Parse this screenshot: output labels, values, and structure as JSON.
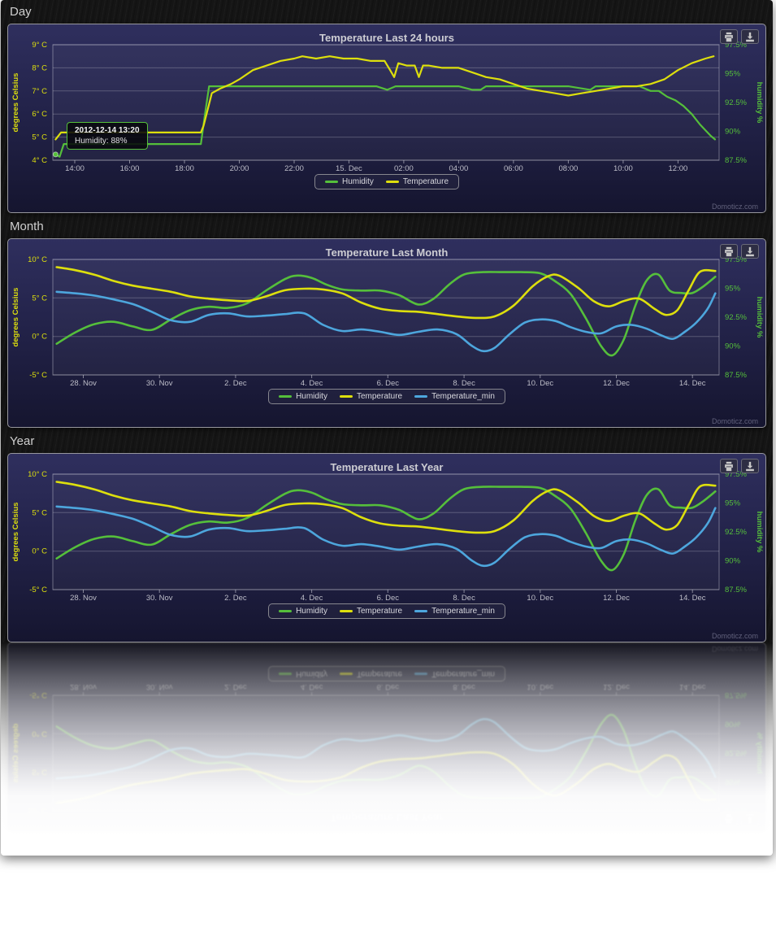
{
  "sections": [
    {
      "label": "Day"
    },
    {
      "label": "Month"
    },
    {
      "label": "Year"
    }
  ],
  "watermark": "Domoticz.com",
  "tooltip": {
    "title": "2012-12-14 13:20",
    "body": "Humidity: 88%"
  },
  "icons": {
    "print": "print-icon",
    "download": "download-icon"
  },
  "colors": {
    "humidity": "#55BF3B",
    "temperature": "#DDDF0D",
    "temperature_min": "#4DA6DD",
    "panel_bg_top": "#2f2f5e",
    "panel_bg_bottom": "#15152f"
  },
  "chart_data": [
    {
      "type": "line",
      "title": "Temperature Last 24 hours",
      "smooth": false,
      "ylabel_left": "degrees Celsius",
      "ylabel_right": "humidity %",
      "axis_colors": {
        "left": "#DDDF0D",
        "right": "#55BF3B"
      },
      "xlim": [
        13.2,
        37.5
      ],
      "ylim_left": [
        4,
        9
      ],
      "ylim_right": [
        87.5,
        97.5
      ],
      "xticks": {
        "values": [
          14,
          16,
          18,
          20,
          22,
          24,
          26,
          28,
          30,
          32,
          34,
          36
        ],
        "labels": [
          "14:00",
          "16:00",
          "18:00",
          "20:00",
          "22:00",
          "15. Dec",
          "02:00",
          "04:00",
          "06:00",
          "08:00",
          "10:00",
          "12:00"
        ]
      },
      "yticks_left": {
        "values": [
          4,
          5,
          6,
          7,
          8,
          9
        ],
        "labels": [
          "4° C",
          "5° C",
          "6° C",
          "7° C",
          "8° C",
          "9° C"
        ]
      },
      "yticks_right": {
        "values": [
          87.5,
          90,
          92.5,
          95,
          97.5
        ],
        "labels": [
          "87.5%",
          "90%",
          "92.5%",
          "95%",
          "97.5%"
        ]
      },
      "legend_position": "bottom",
      "series": [
        {
          "name": "Humidity",
          "color": "#55BF3B",
          "axis": "right",
          "marker_index": 0,
          "x": [
            13.3,
            13.45,
            13.6,
            14,
            15,
            16,
            17,
            18,
            18.6,
            18.75,
            18.9,
            19.5,
            20,
            21,
            22,
            23,
            24,
            25,
            25.4,
            25.7,
            26,
            27,
            28,
            28.5,
            28.8,
            29,
            30,
            31,
            32,
            32.8,
            33,
            33.4,
            34,
            34.6,
            35,
            35.3,
            35.6,
            35.9,
            36.2,
            36.5,
            36.8,
            37.0,
            37.2,
            37.35
          ],
          "values": [
            88.0,
            87.8,
            88.9,
            88.9,
            88.9,
            88.9,
            88.9,
            88.9,
            88.9,
            91.5,
            93.9,
            93.9,
            93.9,
            93.9,
            93.9,
            93.9,
            93.9,
            93.9,
            93.6,
            93.9,
            93.9,
            93.9,
            93.9,
            93.6,
            93.6,
            93.9,
            93.9,
            93.9,
            93.9,
            93.6,
            93.9,
            93.9,
            93.9,
            93.9,
            93.5,
            93.5,
            93.0,
            92.7,
            92.2,
            91.5,
            90.6,
            90.1,
            89.6,
            89.3
          ]
        },
        {
          "name": "Temperature",
          "color": "#DDDF0D",
          "axis": "left",
          "x": [
            13.3,
            13.5,
            14,
            15,
            16,
            17,
            18,
            18.6,
            18.7,
            19.0,
            19.3,
            19.7,
            20,
            20.5,
            21,
            21.5,
            22,
            22.3,
            22.8,
            23.3,
            23.8,
            24.3,
            24.8,
            25.3,
            25.5,
            25.65,
            25.8,
            26.1,
            26.4,
            26.55,
            26.7,
            26.9,
            27.4,
            28,
            28.5,
            29,
            29.5,
            30,
            30.5,
            31,
            31.5,
            32,
            32.5,
            33,
            33.5,
            34,
            34.5,
            35,
            35.5,
            36,
            36.5,
            37,
            37.3
          ],
          "values": [
            4.9,
            5.2,
            5.2,
            5.2,
            5.2,
            5.2,
            5.2,
            5.2,
            5.5,
            6.9,
            7.1,
            7.3,
            7.5,
            7.9,
            8.1,
            8.3,
            8.4,
            8.5,
            8.4,
            8.5,
            8.4,
            8.4,
            8.3,
            8.3,
            7.9,
            7.6,
            8.2,
            8.1,
            8.1,
            7.6,
            8.1,
            8.1,
            8.0,
            8.0,
            7.8,
            7.6,
            7.5,
            7.3,
            7.1,
            7.0,
            6.9,
            6.8,
            6.9,
            7.0,
            7.1,
            7.2,
            7.2,
            7.3,
            7.5,
            7.9,
            8.2,
            8.4,
            8.5
          ]
        }
      ]
    },
    {
      "type": "line",
      "title": "Temperature Last Month",
      "smooth": true,
      "ylabel_left": "degrees Celsius",
      "ylabel_right": "humidity %",
      "axis_colors": {
        "left": "#DDDF0D",
        "right": "#55BF3B"
      },
      "xlim": [
        27.2,
        44.7
      ],
      "ylim_left": [
        -5,
        10
      ],
      "ylim_right": [
        87.5,
        97.5
      ],
      "xticks": {
        "values": [
          28,
          30,
          32,
          34,
          36,
          38,
          40,
          42,
          44
        ],
        "labels": [
          "28. Nov",
          "30. Nov",
          "2. Dec",
          "4. Dec",
          "6. Dec",
          "8. Dec",
          "10. Dec",
          "12. Dec",
          "14. Dec"
        ]
      },
      "yticks_left": {
        "values": [
          -5,
          0,
          5,
          10
        ],
        "labels": [
          "-5° C",
          "0° C",
          "5° C",
          "10° C"
        ]
      },
      "yticks_right": {
        "values": [
          87.5,
          90,
          92.5,
          95,
          97.5
        ],
        "labels": [
          "87.5%",
          "90%",
          "92.5%",
          "95%",
          "97.5%"
        ]
      },
      "legend_position": "bottom",
      "series": [
        {
          "name": "Humidity",
          "color": "#55BF3B",
          "axis": "right",
          "x": [
            27.3,
            27.8,
            28.3,
            28.8,
            29.3,
            29.8,
            30.3,
            30.8,
            31.3,
            31.8,
            32.3,
            32.8,
            33.3,
            33.6,
            34.0,
            34.4,
            34.8,
            35.3,
            35.8,
            36.3,
            36.8,
            37.2,
            37.6,
            38.0,
            38.5,
            39.0,
            39.5,
            40.0,
            40.4,
            40.8,
            41.2,
            41.6,
            41.9,
            42.2,
            42.5,
            42.8,
            43.1,
            43.4,
            43.7,
            44.0,
            44.3,
            44.6
          ],
          "values": [
            90.2,
            91.2,
            91.9,
            92.1,
            91.7,
            91.4,
            92.3,
            93.1,
            93.4,
            93.3,
            93.7,
            94.8,
            95.8,
            96.1,
            95.9,
            95.3,
            94.9,
            94.8,
            94.8,
            94.4,
            93.6,
            94.1,
            95.3,
            96.2,
            96.4,
            96.4,
            96.4,
            96.3,
            95.6,
            94.5,
            92.4,
            90.0,
            89.2,
            90.6,
            93.5,
            95.7,
            96.2,
            94.8,
            94.6,
            94.6,
            95.2,
            96.0
          ]
        },
        {
          "name": "Temperature",
          "color": "#DDDF0D",
          "axis": "left",
          "x": [
            27.3,
            27.8,
            28.3,
            28.8,
            29.3,
            29.8,
            30.3,
            30.8,
            31.3,
            31.8,
            32.3,
            32.8,
            33.3,
            33.8,
            34.3,
            34.8,
            35.3,
            35.8,
            36.3,
            36.8,
            37.3,
            37.8,
            38.3,
            38.8,
            39.3,
            39.8,
            40.2,
            40.5,
            41.0,
            41.4,
            41.8,
            42.2,
            42.6,
            43.0,
            43.3,
            43.6,
            43.9,
            44.2,
            44.6
          ],
          "values": [
            9.0,
            8.6,
            8.0,
            7.2,
            6.6,
            6.2,
            5.8,
            5.2,
            4.9,
            4.7,
            4.6,
            5.2,
            6.0,
            6.2,
            6.1,
            5.6,
            4.4,
            3.6,
            3.3,
            3.2,
            2.9,
            2.6,
            2.4,
            2.6,
            4.0,
            6.5,
            7.8,
            7.9,
            6.3,
            4.6,
            3.9,
            4.6,
            4.9,
            3.6,
            2.8,
            3.4,
            6.0,
            8.4,
            8.5
          ]
        },
        {
          "name": "Temperature_min",
          "color": "#4DA6DD",
          "axis": "left",
          "x": [
            27.3,
            27.8,
            28.3,
            28.8,
            29.3,
            29.8,
            30.3,
            30.8,
            31.3,
            31.8,
            32.3,
            32.8,
            33.3,
            33.8,
            34.3,
            34.8,
            35.3,
            35.8,
            36.3,
            36.8,
            37.3,
            37.8,
            38.2,
            38.5,
            38.8,
            39.2,
            39.6,
            40.0,
            40.4,
            40.8,
            41.2,
            41.6,
            42.0,
            42.4,
            42.8,
            43.2,
            43.5,
            43.8,
            44.1,
            44.4,
            44.6
          ],
          "values": [
            5.8,
            5.6,
            5.3,
            4.8,
            4.2,
            3.2,
            2.1,
            1.9,
            2.8,
            3.0,
            2.6,
            2.7,
            2.9,
            3.0,
            1.5,
            0.7,
            0.9,
            0.6,
            0.2,
            0.6,
            0.9,
            0.3,
            -1.2,
            -1.9,
            -1.5,
            0.3,
            1.8,
            2.2,
            2.0,
            1.2,
            0.6,
            0.4,
            1.3,
            1.5,
            1.0,
            0.1,
            -0.3,
            0.6,
            1.8,
            3.6,
            5.6
          ]
        }
      ]
    },
    {
      "type": "line",
      "title": "Temperature Last Year",
      "smooth": true,
      "ylabel_left": "degrees Celsius",
      "ylabel_right": "humidity %",
      "axis_colors": {
        "left": "#DDDF0D",
        "right": "#55BF3B"
      },
      "xlim": [
        27.2,
        44.7
      ],
      "ylim_left": [
        -5,
        10
      ],
      "ylim_right": [
        87.5,
        97.5
      ],
      "xticks": {
        "values": [
          28,
          30,
          32,
          34,
          36,
          38,
          40,
          42,
          44
        ],
        "labels": [
          "28. Nov",
          "30. Nov",
          "2. Dec",
          "4. Dec",
          "6. Dec",
          "8. Dec",
          "10. Dec",
          "12. Dec",
          "14. Dec"
        ]
      },
      "yticks_left": {
        "values": [
          -5,
          0,
          5,
          10
        ],
        "labels": [
          "-5° C",
          "0° C",
          "5° C",
          "10° C"
        ]
      },
      "yticks_right": {
        "values": [
          87.5,
          90,
          92.5,
          95,
          97.5
        ],
        "labels": [
          "87.5%",
          "90%",
          "92.5%",
          "95%",
          "97.5%"
        ]
      },
      "legend_position": "bottom",
      "series": [
        {
          "name": "Humidity",
          "color": "#55BF3B",
          "axis": "right",
          "x": [
            27.3,
            27.8,
            28.3,
            28.8,
            29.3,
            29.8,
            30.3,
            30.8,
            31.3,
            31.8,
            32.3,
            32.8,
            33.3,
            33.6,
            34.0,
            34.4,
            34.8,
            35.3,
            35.8,
            36.3,
            36.8,
            37.2,
            37.6,
            38.0,
            38.5,
            39.0,
            39.5,
            40.0,
            40.4,
            40.8,
            41.2,
            41.6,
            41.9,
            42.2,
            42.5,
            42.8,
            43.1,
            43.4,
            43.7,
            44.0,
            44.3,
            44.6
          ],
          "values": [
            90.2,
            91.2,
            91.9,
            92.1,
            91.7,
            91.4,
            92.3,
            93.1,
            93.4,
            93.3,
            93.7,
            94.8,
            95.8,
            96.1,
            95.9,
            95.3,
            94.9,
            94.8,
            94.8,
            94.4,
            93.6,
            94.1,
            95.3,
            96.2,
            96.4,
            96.4,
            96.4,
            96.3,
            95.6,
            94.5,
            92.4,
            90.0,
            89.2,
            90.6,
            93.5,
            95.7,
            96.2,
            94.8,
            94.6,
            94.6,
            95.2,
            96.0
          ]
        },
        {
          "name": "Temperature",
          "color": "#DDDF0D",
          "axis": "left",
          "x": [
            27.3,
            27.8,
            28.3,
            28.8,
            29.3,
            29.8,
            30.3,
            30.8,
            31.3,
            31.8,
            32.3,
            32.8,
            33.3,
            33.8,
            34.3,
            34.8,
            35.3,
            35.8,
            36.3,
            36.8,
            37.3,
            37.8,
            38.3,
            38.8,
            39.3,
            39.8,
            40.2,
            40.5,
            41.0,
            41.4,
            41.8,
            42.2,
            42.6,
            43.0,
            43.3,
            43.6,
            43.9,
            44.2,
            44.6
          ],
          "values": [
            9.0,
            8.6,
            8.0,
            7.2,
            6.6,
            6.2,
            5.8,
            5.2,
            4.9,
            4.7,
            4.6,
            5.2,
            6.0,
            6.2,
            6.1,
            5.6,
            4.4,
            3.6,
            3.3,
            3.2,
            2.9,
            2.6,
            2.4,
            2.6,
            4.0,
            6.5,
            7.8,
            7.9,
            6.3,
            4.6,
            3.9,
            4.6,
            4.9,
            3.6,
            2.8,
            3.4,
            6.0,
            8.4,
            8.5
          ]
        },
        {
          "name": "Temperature_min",
          "color": "#4DA6DD",
          "axis": "left",
          "x": [
            27.3,
            27.8,
            28.3,
            28.8,
            29.3,
            29.8,
            30.3,
            30.8,
            31.3,
            31.8,
            32.3,
            32.8,
            33.3,
            33.8,
            34.3,
            34.8,
            35.3,
            35.8,
            36.3,
            36.8,
            37.3,
            37.8,
            38.2,
            38.5,
            38.8,
            39.2,
            39.6,
            40.0,
            40.4,
            40.8,
            41.2,
            41.6,
            42.0,
            42.4,
            42.8,
            43.2,
            43.5,
            43.8,
            44.1,
            44.4,
            44.6
          ],
          "values": [
            5.8,
            5.6,
            5.3,
            4.8,
            4.2,
            3.2,
            2.1,
            1.9,
            2.8,
            3.0,
            2.6,
            2.7,
            2.9,
            3.0,
            1.5,
            0.7,
            0.9,
            0.6,
            0.2,
            0.6,
            0.9,
            0.3,
            -1.2,
            -1.9,
            -1.5,
            0.3,
            1.8,
            2.2,
            2.0,
            1.2,
            0.6,
            0.4,
            1.3,
            1.5,
            1.0,
            0.1,
            -0.3,
            0.6,
            1.8,
            3.6,
            5.6
          ]
        }
      ]
    }
  ]
}
